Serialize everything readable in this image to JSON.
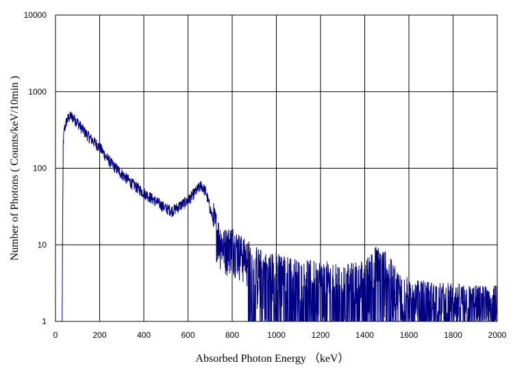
{
  "chart_data": {
    "type": "line",
    "title": "",
    "xlabel": "Absorbed Photon Energy （keV）",
    "ylabel": "Number  of Photons ( Counts/keV/10min  )",
    "xlim": [
      0,
      2000
    ],
    "ylim": [
      1,
      10000
    ],
    "y_scale": "log",
    "grid": true,
    "legend": "none",
    "x_ticks": [
      "0",
      "200",
      "400",
      "600",
      "800",
      "1000",
      "1200",
      "1400",
      "1600",
      "1800",
      "2000"
    ],
    "y_ticks": [
      "1",
      "10",
      "100",
      "1000",
      "10000"
    ],
    "series_color": "#000080",
    "series": [
      {
        "x": [
          30,
          35,
          40,
          50,
          60,
          70,
          80,
          100,
          120,
          150,
          175,
          200,
          230,
          260,
          300,
          350,
          400,
          450,
          500,
          530,
          560,
          600,
          630,
          660,
          680,
          700,
          720,
          740,
          760,
          800,
          850,
          900,
          950,
          1000,
          1100,
          1200,
          1300,
          1400,
          1450,
          1500,
          1550,
          1600,
          1700,
          1800,
          1900,
          2000
        ],
        "y": [
          1,
          220,
          320,
          410,
          460,
          480,
          460,
          400,
          330,
          260,
          220,
          190,
          140,
          110,
          85,
          62,
          48,
          38,
          30,
          28,
          32,
          38,
          48,
          60,
          50,
          30,
          18,
          12,
          9,
          10,
          7,
          5,
          4,
          4,
          3,
          3,
          2.5,
          3,
          5,
          4,
          2,
          1.5,
          1.3,
          1.2,
          1.1,
          1.1
        ]
      }
    ]
  }
}
